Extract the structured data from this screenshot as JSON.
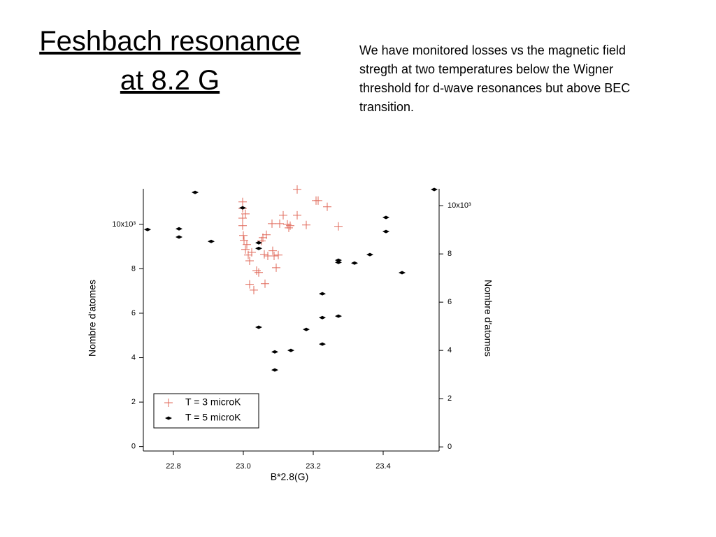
{
  "slide": {
    "title": [
      "Feshbach resonance",
      "at 8.2 G"
    ],
    "body": [
      "We have monitored losses vs the magnetic field",
      "stregth at two temperatures below the Wigner",
      "threshold for d-wave resonances but above BEC",
      "transition."
    ]
  },
  "chart_data": {
    "type": "scatter",
    "xlabel": "B*2.8(G)",
    "ylabel": "Nombre d'atomes",
    "y2label": "Nombre d'atomes",
    "xlim": [
      22.714,
      23.56
    ],
    "ylim": [
      -0.2,
      11.6
    ],
    "y2lim": [
      -0.17,
      10.7
    ],
    "xticks": [
      22.8,
      {
        "value": 23,
        "label": "23.0"
      },
      23.2,
      23.4
    ],
    "yticks": [
      0,
      2,
      4,
      6,
      8,
      {
        "value": 10,
        "label": "10x10³"
      }
    ],
    "y2ticks": [
      0,
      2,
      4,
      6,
      8,
      {
        "value": 10,
        "label": "10x10³"
      }
    ],
    "legend": "lower left",
    "series": [
      {
        "name": "T = 3 microK",
        "color": "#e0695a",
        "marker": "plus",
        "x": [
          22.998,
          22.998,
          22.998,
          22.998,
          23.006,
          23.0,
          23.002,
          23.01,
          23.006,
          23.014,
          23.018,
          23.024,
          23.018,
          23.03,
          23.038,
          23.044,
          23.052,
          23.056,
          23.06,
          23.066,
          23.07,
          23.062,
          23.082,
          23.084,
          23.088,
          23.094,
          23.1,
          23.104,
          23.114,
          23.126,
          23.13,
          23.134,
          23.154,
          23.154,
          23.18,
          23.208,
          23.214,
          23.24,
          23.272
        ],
        "values": [
          11.01,
          10.72,
          10.28,
          9.94,
          10.47,
          9.5,
          9.28,
          9.09,
          8.87,
          8.62,
          8.36,
          8.74,
          7.3,
          7.04,
          7.92,
          7.83,
          9.25,
          9.4,
          8.65,
          9.53,
          8.58,
          7.33,
          10.03,
          8.81,
          8.58,
          8.05,
          8.62,
          10.03,
          10.41,
          10.0,
          9.84,
          9.94,
          11.57,
          10.41,
          9.97,
          11.07,
          11.07,
          10.79,
          9.91
        ]
      },
      {
        "name": "T = 5 microK",
        "color": "#000000",
        "marker": "diamond",
        "axis": "y2",
        "x": [
          22.726,
          22.816,
          22.816,
          22.862,
          22.908,
          22.998,
          23.044,
          23.044,
          23.044,
          23.09,
          23.09,
          23.136,
          23.18,
          23.226,
          23.226,
          23.226,
          23.272,
          23.272,
          23.272,
          23.318,
          23.362,
          23.408,
          23.408,
          23.454,
          23.546
        ],
        "values": [
          9.01,
          9.04,
          8.7,
          10.55,
          8.52,
          9.91,
          8.46,
          8.23,
          4.96,
          3.94,
          3.19,
          4.0,
          4.87,
          6.35,
          5.36,
          4.26,
          7.74,
          7.65,
          5.42,
          7.62,
          7.97,
          9.51,
          8.93,
          7.22,
          10.67
        ]
      }
    ]
  }
}
